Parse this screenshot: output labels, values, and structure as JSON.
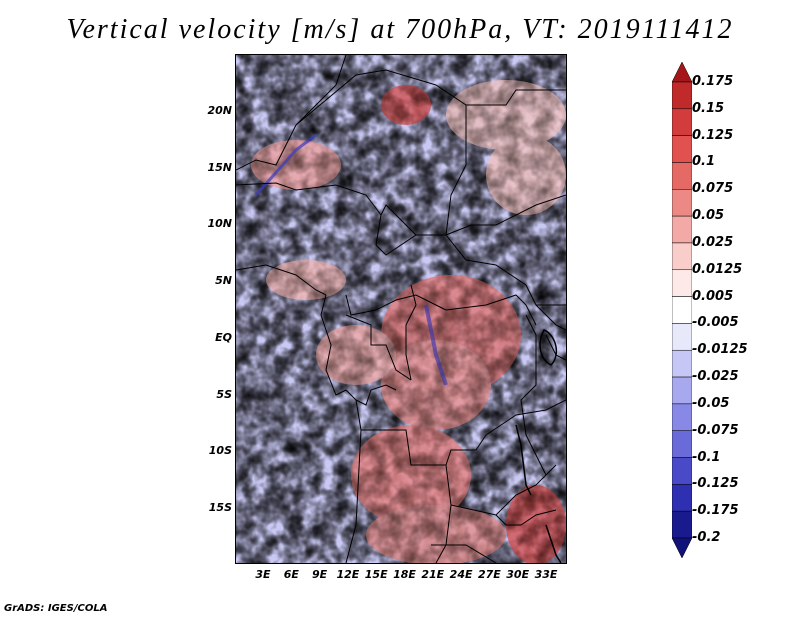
{
  "title": "Vertical velocity [m/s] at 700hPa, VT: 2019111412",
  "credit": "GrADS: IGES/COLA",
  "lat_labels": [
    "20N",
    "15N",
    "10N",
    "5N",
    "EQ",
    "5S",
    "10S",
    "15S"
  ],
  "lon_labels": [
    "3E",
    "6E",
    "9E",
    "12E",
    "15E",
    "18E",
    "21E",
    "24E",
    "27E",
    "30E",
    "33E"
  ],
  "colorbar": {
    "labels": [
      "0.175",
      "0.15",
      "0.125",
      "0.1",
      "0.075",
      "0.05",
      "0.025",
      "0.0125",
      "0.005",
      "-0.005",
      "-0.0125",
      "-0.025",
      "-0.05",
      "-0.075",
      "-0.1",
      "-0.125",
      "-0.175",
      "-0.2"
    ],
    "colors": [
      "#a4161a",
      "#c02a2a",
      "#d33c3c",
      "#e0514f",
      "#e56a66",
      "#ec8985",
      "#f3aaa6",
      "#f8cdca",
      "#fde9e7",
      "#ffffff",
      "#e8e8fb",
      "#c7c7f5",
      "#a8a8ef",
      "#8888e6",
      "#6a6ad9",
      "#4a4ac8",
      "#2f2fb1",
      "#1a1a8f",
      "#11117a"
    ]
  }
}
